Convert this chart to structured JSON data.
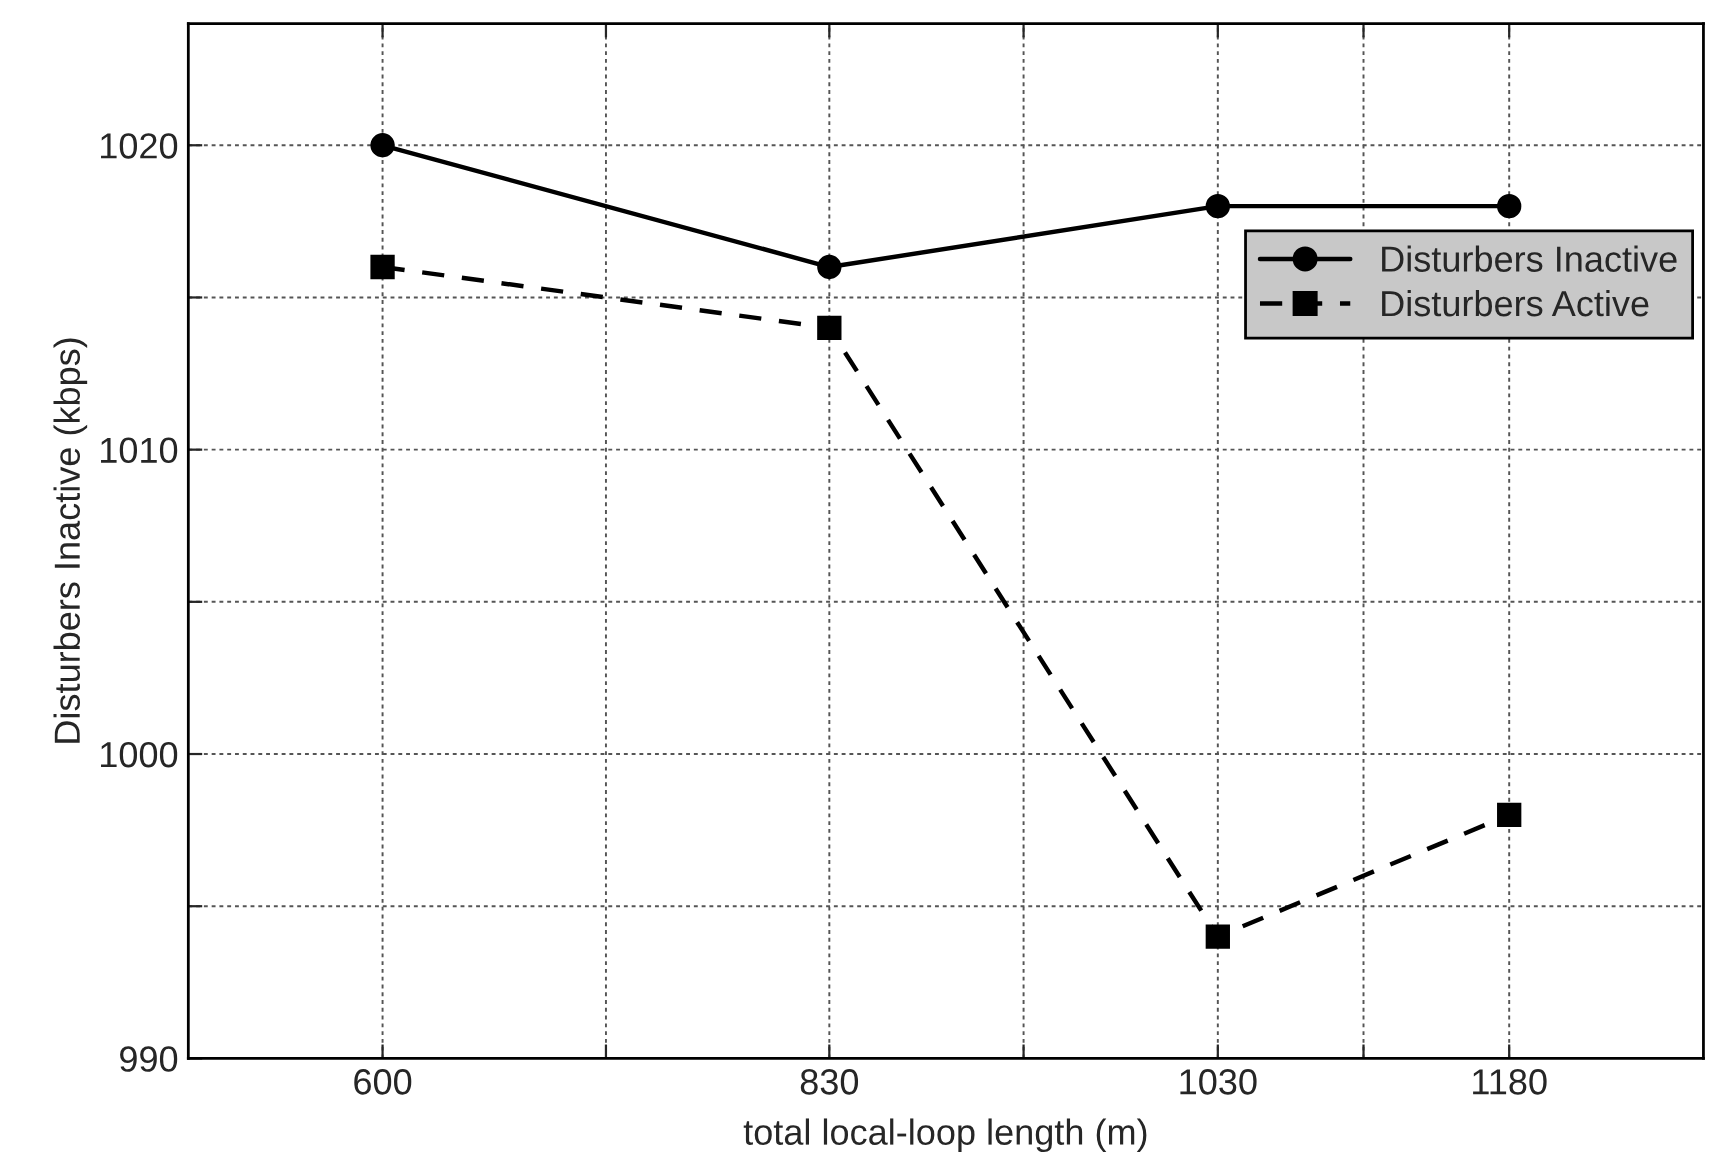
{
  "chart_data": {
    "type": "line",
    "xlabel": "total local-loop length (m)",
    "ylabel": "Disturbers Inactive (kbps)",
    "x": [
      600,
      830,
      1030,
      1180
    ],
    "series": [
      {
        "name": "Disturbers Inactive",
        "color": "#000000",
        "values": [
          1020,
          1016,
          1018,
          1018
        ],
        "marker": "circle",
        "line_style": "solid"
      },
      {
        "name": "Disturbers Active",
        "color": "#000000",
        "values": [
          1016,
          1014,
          994,
          998
        ],
        "marker": "square",
        "line_style": "dashed"
      }
    ],
    "xlim": [
      500,
      1280
    ],
    "xticks": [
      600,
      {
        "value": 715,
        "label": null
      },
      830,
      {
        "value": 930,
        "label": null
      },
      1030,
      {
        "value": 1105,
        "label": null
      },
      1180
    ],
    "ylim": [
      990,
      1024
    ],
    "yticks": [
      990,
      {
        "value": 995,
        "label": null
      },
      1000,
      {
        "value": 1005,
        "label": null
      },
      1010,
      {
        "value": 1015,
        "label": null
      },
      1020
    ],
    "grid": true,
    "legend": "right"
  }
}
